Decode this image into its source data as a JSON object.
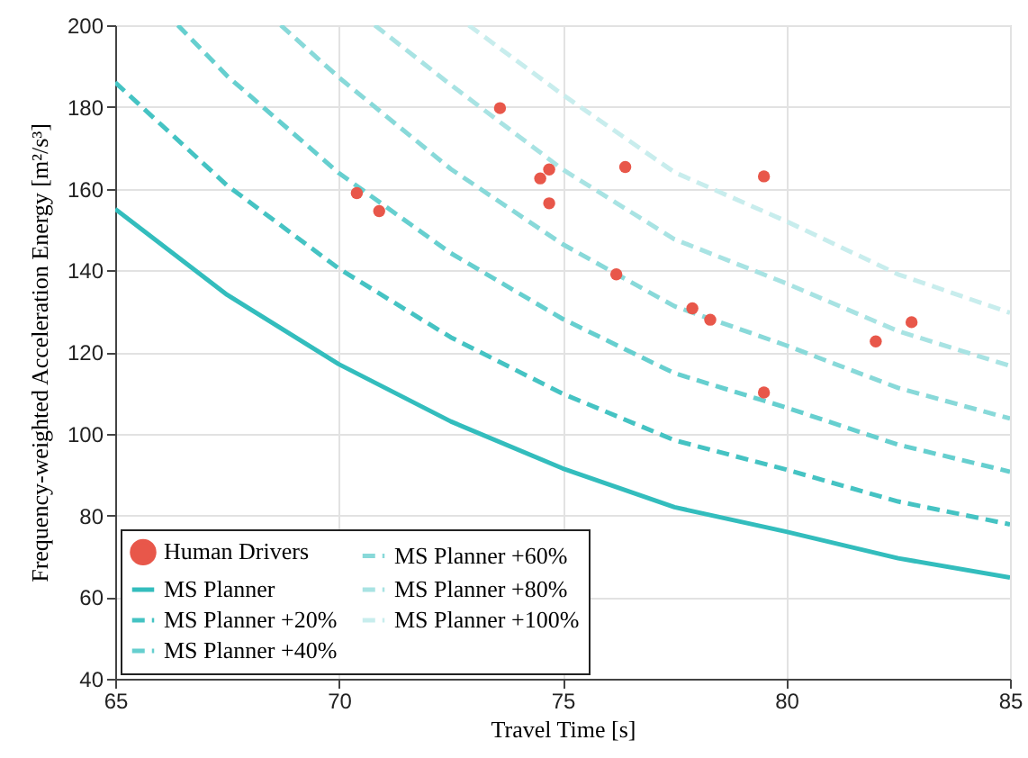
{
  "chart_data": {
    "type": "line",
    "xlabel": "Travel Time [s]",
    "ylabel": "Frequency-weighted Acceleration Energy [m²/s³]",
    "xlim": [
      65,
      85
    ],
    "xticks": [
      65,
      70,
      75,
      80,
      85
    ],
    "ylim": [
      40,
      200
    ],
    "yticks": [
      40,
      60,
      80,
      100,
      120,
      140,
      160,
      180,
      200
    ],
    "grid": true,
    "legend": "bottom left",
    "series": [
      {
        "name": "Human Drivers",
        "type": "scatter",
        "marker": "circle",
        "color": "#e8574a",
        "x": [
          70.4,
          70.9,
          73.6,
          74.5,
          74.7,
          74.7,
          76.4,
          76.2,
          77.9,
          78.3,
          79.5,
          82.0,
          82.8,
          79.5
        ],
        "values": [
          158.9,
          154.5,
          179.7,
          162.5,
          164.7,
          156.4,
          165.3,
          139.0,
          130.7,
          127.9,
          163.0,
          122.6,
          127.3,
          110.1
        ]
      },
      {
        "name": "MS Planner",
        "line_style": "solid",
        "color": "#33bdbd",
        "x": [
          65,
          67.5,
          70,
          72.5,
          75,
          77.5,
          80,
          82.5,
          85
        ],
        "values": [
          155,
          134,
          117,
          103,
          91.5,
          82,
          76,
          69.5,
          64.8
        ]
      },
      {
        "name": "MS Planner +20%",
        "line_style": "dashed",
        "color": "#45c3c3",
        "x": [
          65,
          67.5,
          70,
          72.5,
          75,
          77.5,
          80,
          82.5,
          85
        ],
        "values": [
          186,
          160.8,
          140.4,
          123.6,
          109.8,
          98.4,
          91.2,
          83.4,
          77.8
        ]
      },
      {
        "name": "MS Planner +40%",
        "line_style": "dashed",
        "color": "#66cfcf",
        "x": [
          66.4,
          67.5,
          70,
          72.5,
          75,
          77.5,
          80,
          82.5,
          85
        ],
        "values": [
          200,
          187.6,
          163.8,
          144.2,
          128.1,
          114.8,
          106.4,
          97.3,
          90.7
        ]
      },
      {
        "name": "MS Planner +60%",
        "line_style": "dashed",
        "color": "#88d9d9",
        "x": [
          68.7,
          70,
          72.5,
          75,
          77.5,
          80,
          82.5,
          85
        ],
        "values": [
          200,
          187.2,
          164.8,
          146.4,
          131.2,
          121.6,
          111.2,
          103.7
        ]
      },
      {
        "name": "MS Planner +80%",
        "line_style": "dashed",
        "color": "#a8e3e3",
        "x": [
          70.8,
          72.5,
          75,
          77.5,
          80,
          82.5,
          85
        ],
        "values": [
          200,
          185.4,
          164.7,
          147.6,
          136.8,
          125.1,
          116.6
        ]
      },
      {
        "name": "MS Planner +100%",
        "line_style": "dashed",
        "color": "#c8eded",
        "x": [
          72.9,
          75,
          77.5,
          80,
          82.5,
          85
        ],
        "values": [
          200,
          183,
          164,
          152,
          139,
          129.6
        ]
      }
    ]
  }
}
